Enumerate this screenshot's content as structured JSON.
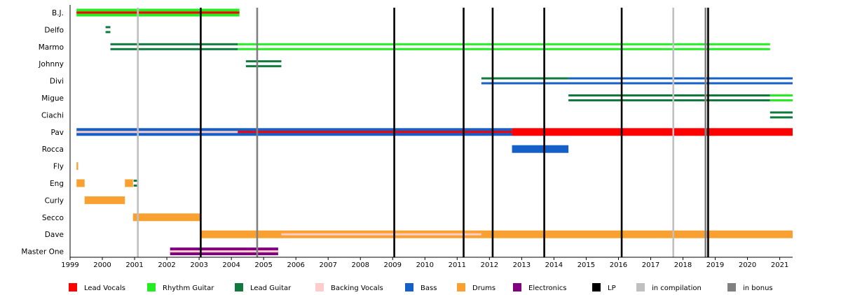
{
  "chart_data": {
    "type": "timeline",
    "title": "",
    "xlabel": "",
    "ylabel": "",
    "xlim": [
      1999.0,
      2021.4
    ],
    "x_ticks": [
      "1999",
      "2000",
      "2001",
      "2002",
      "2003",
      "2004",
      "2005",
      "2006",
      "2007",
      "2008",
      "2009",
      "2010",
      "2011",
      "2012",
      "2013",
      "2014",
      "2015",
      "2016",
      "2017",
      "2018",
      "2019",
      "2020",
      "2021"
    ],
    "members": [
      "B.J.",
      "Delfo",
      "Marmo",
      "Johnny",
      "Divi",
      "Migue",
      "Ciachi",
      "Pav",
      "Rocca",
      "Fly",
      "Eng",
      "Curly",
      "Secco",
      "Dave",
      "Master One"
    ],
    "roles": [
      {
        "key": "lead_vocals",
        "label": "Lead Vocals",
        "color": "#ff0000"
      },
      {
        "key": "rhythm_guitar",
        "label": "Rhythm Guitar",
        "color": "#22ee22"
      },
      {
        "key": "lead_guitar",
        "label": "Lead Guitar",
        "color": "#107a3e"
      },
      {
        "key": "backing_vocals",
        "label": "Backing Vocals",
        "color": "#ffcccc"
      },
      {
        "key": "bass",
        "label": "Bass",
        "color": "#1560c8"
      },
      {
        "key": "drums",
        "label": "Drums",
        "color": "#f8a030"
      },
      {
        "key": "electronics",
        "label": "Electronics",
        "color": "#800080"
      },
      {
        "key": "lp",
        "label": "LP",
        "color": "#000000"
      },
      {
        "key": "compilation",
        "label": "in compilation",
        "color": "#c0c0c0"
      },
      {
        "key": "bonus",
        "label": "in bonus",
        "color": "#808080"
      }
    ],
    "events": [
      {
        "type": "compilation",
        "year": 2001.1
      },
      {
        "type": "bonus",
        "year": 2004.8
      },
      {
        "type": "compilation",
        "year": 2017.7
      },
      {
        "type": "bonus",
        "year": 2018.7
      },
      {
        "type": "lp",
        "year": 2003.05
      },
      {
        "type": "lp",
        "year": 2009.05
      },
      {
        "type": "lp",
        "year": 2011.2
      },
      {
        "type": "lp",
        "year": 2012.1
      },
      {
        "type": "lp",
        "year": 2013.7
      },
      {
        "type": "lp",
        "year": 2016.1
      },
      {
        "type": "lp",
        "year": 2018.78
      }
    ],
    "spans": [
      {
        "member": "B.J.",
        "role": "rhythm_guitar",
        "start": 1999.2,
        "end": 2004.25
      },
      {
        "member": "B.J.",
        "role": "lead_vocals",
        "start": 1999.2,
        "end": 2004.25,
        "style": "stripe"
      },
      {
        "member": "Delfo",
        "role": "lead_guitar",
        "start": 2000.1,
        "end": 2000.25,
        "style": "double"
      },
      {
        "member": "Marmo",
        "role": "lead_guitar",
        "start": 2000.25,
        "end": 2004.2,
        "style": "double"
      },
      {
        "member": "Marmo",
        "role": "rhythm_guitar",
        "start": 2004.2,
        "end": 2020.7,
        "style": "double"
      },
      {
        "member": "Johnny",
        "role": "lead_guitar",
        "start": 2004.45,
        "end": 2005.55,
        "style": "double"
      },
      {
        "member": "Divi",
        "role": "lead_guitar",
        "start": 2011.75,
        "end": 2014.45,
        "style": "double-top"
      },
      {
        "member": "Divi",
        "role": "bass",
        "start": 2014.45,
        "end": 2021.4,
        "style": "double-top"
      },
      {
        "member": "Divi",
        "role": "bass",
        "start": 2011.75,
        "end": 2021.4,
        "style": "double-bottom"
      },
      {
        "member": "Migue",
        "role": "lead_guitar",
        "start": 2014.45,
        "end": 2020.7,
        "style": "double"
      },
      {
        "member": "Migue",
        "role": "rhythm_guitar",
        "start": 2020.7,
        "end": 2021.4,
        "style": "double"
      },
      {
        "member": "Ciachi",
        "role": "lead_guitar",
        "start": 2020.7,
        "end": 2021.4,
        "style": "double"
      },
      {
        "member": "Pav",
        "role": "bass",
        "start": 1999.2,
        "end": 2012.7
      },
      {
        "member": "Pav",
        "role": "backing_vocals",
        "start": 1999.2,
        "end": 2004.2,
        "style": "stripe"
      },
      {
        "member": "Pav",
        "role": "lead_vocals",
        "start": 2004.2,
        "end": 2012.7,
        "style": "stripe"
      },
      {
        "member": "Pav",
        "role": "lead_vocals",
        "start": 2012.7,
        "end": 2021.4
      },
      {
        "member": "Rocca",
        "role": "bass",
        "start": 2012.7,
        "end": 2014.45
      },
      {
        "member": "Fly",
        "role": "drums",
        "start": 1999.2,
        "end": 1999.25
      },
      {
        "member": "Eng",
        "role": "drums",
        "start": 1999.2,
        "end": 1999.45
      },
      {
        "member": "Eng",
        "role": "drums",
        "start": 2000.7,
        "end": 2000.95
      },
      {
        "member": "Eng",
        "role": "lead_guitar",
        "start": 2000.97,
        "end": 2001.1,
        "style": "double"
      },
      {
        "member": "Curly",
        "role": "drums",
        "start": 1999.45,
        "end": 2000.7
      },
      {
        "member": "Secco",
        "role": "drums",
        "start": 2000.95,
        "end": 2003.05
      },
      {
        "member": "Dave",
        "role": "drums",
        "start": 2003.05,
        "end": 2021.4
      },
      {
        "member": "Dave",
        "role": "backing_vocals",
        "start": 2005.55,
        "end": 2011.75,
        "style": "stripe"
      },
      {
        "member": "Master One",
        "role": "electronics",
        "start": 2002.1,
        "end": 2005.45
      },
      {
        "member": "Master One",
        "role": "backing_vocals",
        "start": 2002.1,
        "end": 2005.45,
        "style": "stripe"
      }
    ]
  }
}
